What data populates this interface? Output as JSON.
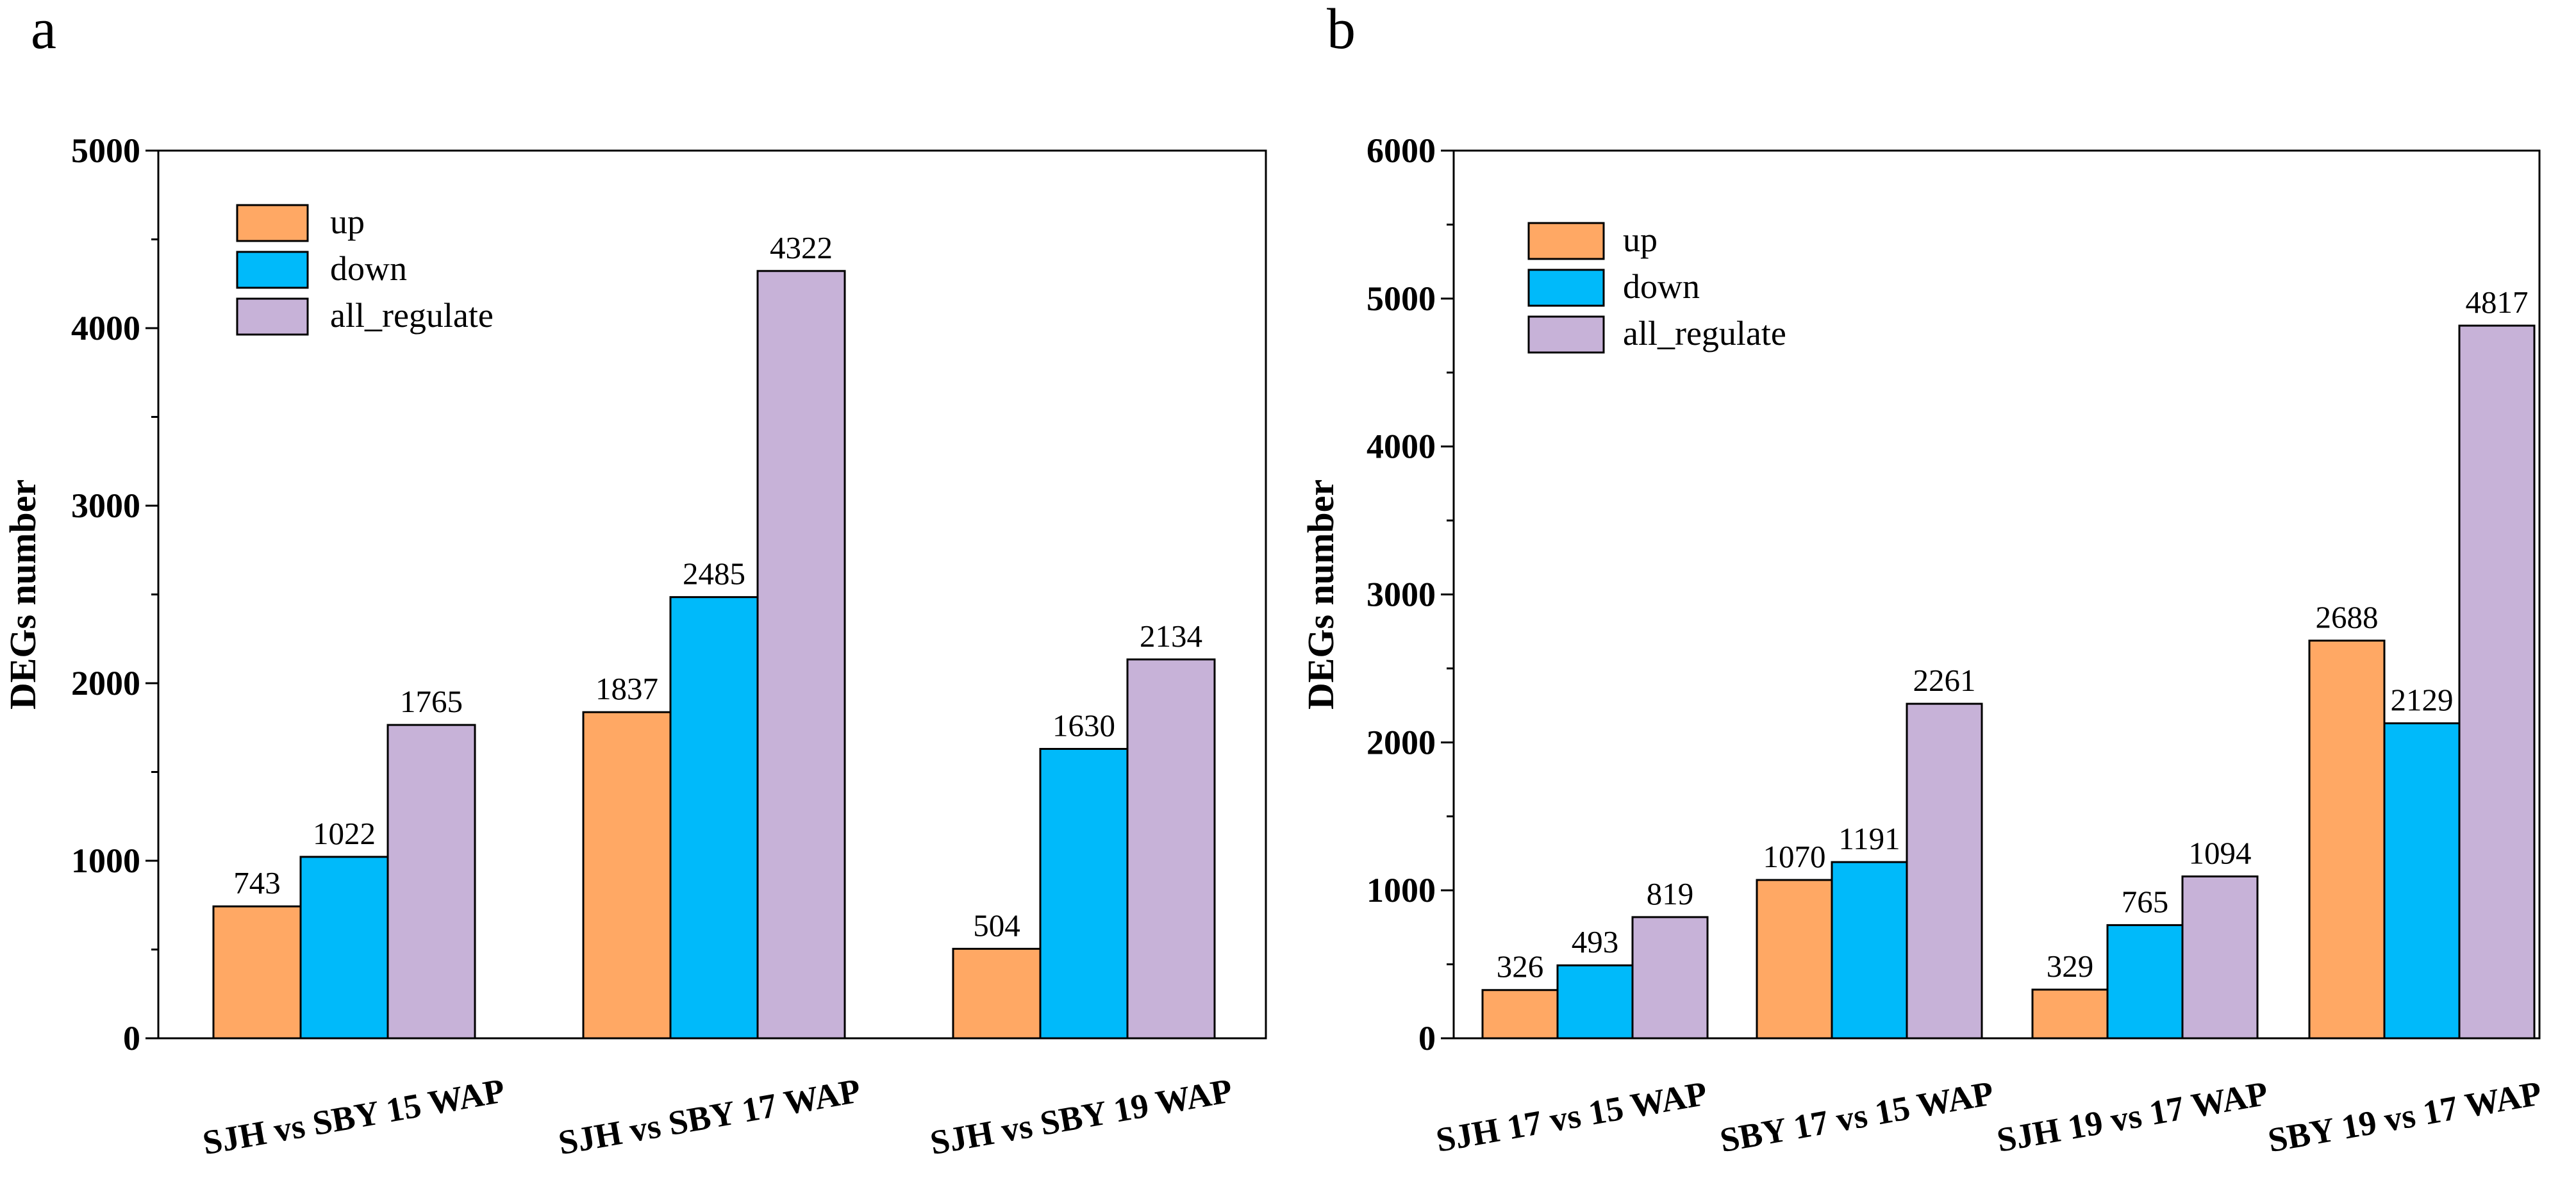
{
  "chart_data": [
    {
      "panel": "a",
      "type": "bar",
      "ylabel": "DEGs number",
      "ylim": [
        0,
        5000
      ],
      "yticks": [
        0,
        1000,
        2000,
        3000,
        4000,
        5000
      ],
      "categories": [
        "SJH vs SBY 15 WAP",
        "SJH vs SBY 17 WAP",
        "SJH vs SBY 19 WAP"
      ],
      "series": [
        {
          "name": "up",
          "color": "#FFA864",
          "values": [
            743,
            1837,
            504
          ]
        },
        {
          "name": "down",
          "color": "#00BAFA",
          "values": [
            1022,
            2485,
            1630
          ]
        },
        {
          "name": "all_regulate",
          "color": "#C7B2D8",
          "values": [
            1765,
            4322,
            2134
          ]
        }
      ],
      "legend": "top-left"
    },
    {
      "panel": "b",
      "type": "bar",
      "ylabel": "DEGs number",
      "ylim": [
        0,
        6000
      ],
      "yticks": [
        0,
        1000,
        2000,
        3000,
        4000,
        5000,
        6000
      ],
      "categories": [
        "SJH 17 vs 15 WAP",
        "SBY 17 vs 15 WAP",
        "SJH 19 vs 17 WAP",
        "SBY 19 vs 17 WAP"
      ],
      "series": [
        {
          "name": "up",
          "color": "#FFA864",
          "values": [
            326,
            1070,
            329,
            2688
          ]
        },
        {
          "name": "down",
          "color": "#00BAFA",
          "values": [
            493,
            1191,
            765,
            2129
          ]
        },
        {
          "name": "all_regulate",
          "color": "#C7B2D8",
          "values": [
            819,
            2261,
            1094,
            4817
          ]
        }
      ],
      "legend": "top-left"
    }
  ]
}
